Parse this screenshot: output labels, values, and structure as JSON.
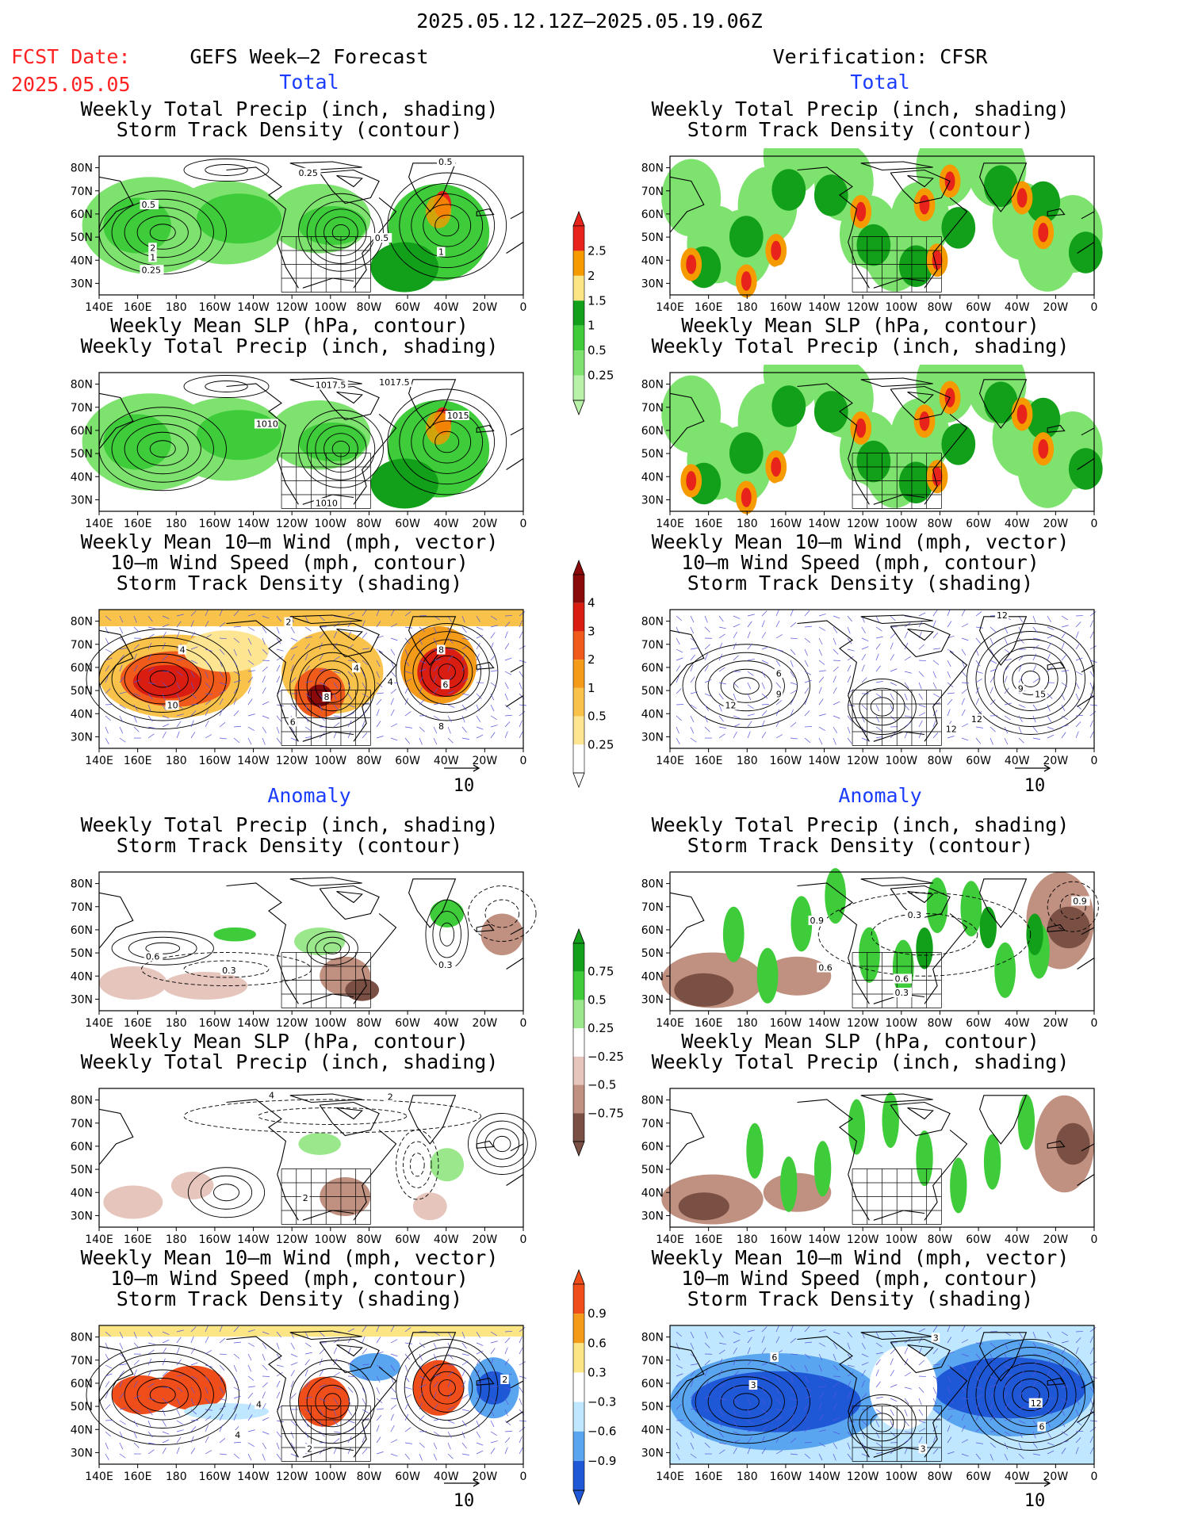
{
  "header": {
    "date_range": "2025.05.12.12Z–2025.05.19.06Z",
    "fcst_label": "FCST Date:",
    "fcst_date": "2025.05.05",
    "left_title": "GEFS Week–2 Forecast",
    "right_title": "Verification: CFSR"
  },
  "sections": {
    "total": "Total",
    "anomaly": "Anomaly"
  },
  "titles": {
    "precip_storm": [
      "Weekly Total Precip (inch, shading)",
      "Storm Track Density (contour)"
    ],
    "slp_precip": [
      "Weekly Mean SLP (hPa, contour)",
      "Weekly Total Precip (inch, shading)"
    ],
    "wind_storm": [
      "Weekly Mean 10–m Wind (mph, vector)",
      "10–m Wind Speed (mph, contour)",
      "Storm Track Density (shading)"
    ]
  },
  "axes": {
    "lat": [
      "80N",
      "70N",
      "60N",
      "50N",
      "40N",
      "30N"
    ],
    "lon": [
      "140E",
      "160E",
      "180",
      "160W",
      "140W",
      "120W",
      "100W",
      "80W",
      "60W",
      "40W",
      "20W",
      "0"
    ]
  },
  "colorbars": {
    "total_precip": {
      "labels": [
        "2.5",
        "2",
        "1.5",
        "1",
        "0.5",
        "0.25"
      ],
      "colors": [
        "#e8231b",
        "#f59b00",
        "#fbe585",
        "#12a01a",
        "#3ecc3a",
        "#7ee26f",
        "#b8f2a9"
      ]
    },
    "total_storm": {
      "labels": [
        "4",
        "3",
        "2",
        "1",
        "0.5",
        "0.25"
      ],
      "colors": [
        "#8a0a0a",
        "#d91d10",
        "#f05a1a",
        "#f59b1a",
        "#f9c24a",
        "#fde592",
        "#ffffff"
      ]
    },
    "anom_precip": {
      "labels": [
        "0.75",
        "0.5",
        "0.25",
        "−0.25",
        "−0.5",
        "−0.75"
      ],
      "colors": [
        "#12a01a",
        "#3ecc3a",
        "#9ae88b",
        "#ffffff",
        "#e6c6bc",
        "#c09080",
        "#7a5044"
      ]
    },
    "anom_storm": {
      "labels": [
        "0.9",
        "0.6",
        "0.3",
        "−0.3",
        "−0.6",
        "−0.9"
      ],
      "colors": [
        "#ef4d1a",
        "#f59b1a",
        "#fbe585",
        "#ffffff",
        "#bfe7ff",
        "#5aa5f0",
        "#1f58d6"
      ]
    }
  },
  "contour_labels": {
    "fcst_total_storm": [
      "0.5",
      "0.25",
      "0.5",
      "2",
      "1",
      "0.25",
      "0.5",
      "1"
    ],
    "fcst_total_slp": [
      "1017.5",
      "1017.5",
      "1010",
      "1015",
      "1010"
    ],
    "fcst_total_wind": [
      "2",
      "4",
      "8",
      "10",
      "4",
      "4",
      "8",
      "6",
      "6",
      "8"
    ],
    "cfsr_total_wind": [
      "12",
      "6",
      "9",
      "12",
      "12",
      "15",
      "9",
      "12"
    ],
    "fcst_anom_storm": [
      "0.6",
      "0.3",
      "0.3"
    ],
    "cfsr_anom_storm": [
      "0.9",
      "0.3",
      "0.6",
      "0.3",
      "0.6",
      "0.9"
    ],
    "fcst_anom_slp": [
      "4",
      "2",
      "2"
    ],
    "fcst_anom_wind": [
      "4",
      "2",
      "4",
      "2"
    ],
    "cfsr_anom_wind": [
      "6",
      "3",
      "3",
      "12",
      "6",
      "3"
    ]
  },
  "vector_ref": "10"
}
